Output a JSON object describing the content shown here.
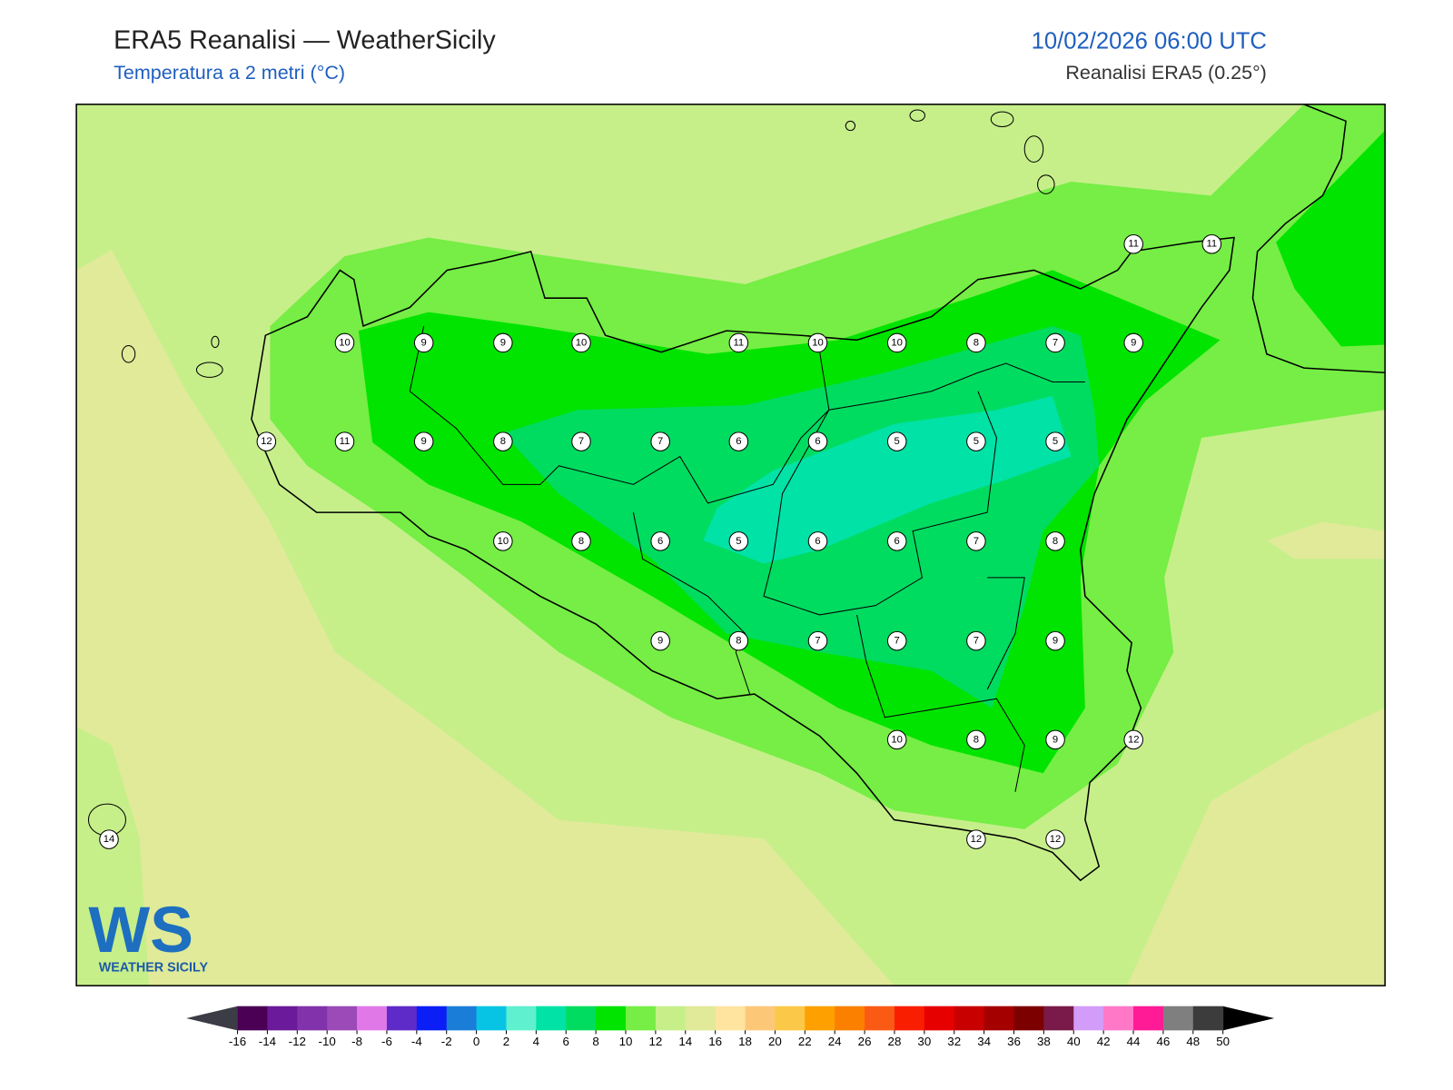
{
  "header": {
    "title": "ERA5 Reanalisi — WeatherSicily",
    "subtitle": "Temperatura a 2 metri (°C)",
    "datetime": "10/02/2026 06:00 UTC",
    "source": "Reanalisi ERA5 (0.25°)"
  },
  "stations": [
    {
      "value": 11
    },
    {
      "value": 11
    },
    {
      "value": 10
    },
    {
      "value": 9
    },
    {
      "value": 9
    },
    {
      "value": 10
    },
    {
      "value": 11
    },
    {
      "value": 10
    },
    {
      "value": 10
    },
    {
      "value": 8
    },
    {
      "value": 7
    },
    {
      "value": 9
    },
    {
      "value": 12
    },
    {
      "value": 11
    },
    {
      "value": 9
    },
    {
      "value": 8
    },
    {
      "value": 7
    },
    {
      "value": 7
    },
    {
      "value": 6
    },
    {
      "value": 6
    },
    {
      "value": 5
    },
    {
      "value": 5
    },
    {
      "value": 5
    },
    {
      "value": 10
    },
    {
      "value": 8
    },
    {
      "value": 6
    },
    {
      "value": 5
    },
    {
      "value": 6
    },
    {
      "value": 6
    },
    {
      "value": 7
    },
    {
      "value": 8
    },
    {
      "value": 9
    },
    {
      "value": 8
    },
    {
      "value": 7
    },
    {
      "value": 7
    },
    {
      "value": 7
    },
    {
      "value": 9
    },
    {
      "value": 10
    },
    {
      "value": 8
    },
    {
      "value": 9
    },
    {
      "value": 12
    },
    {
      "value": 12
    },
    {
      "value": 12
    },
    {
      "value": 14
    }
  ],
  "colorbar": {
    "ticks": [
      -16,
      -14,
      -12,
      -10,
      -8,
      -6,
      -4,
      -2,
      0,
      2,
      4,
      6,
      8,
      10,
      12,
      14,
      16,
      18,
      20,
      22,
      24,
      26,
      28,
      30,
      32,
      34,
      36,
      38,
      40,
      42,
      44,
      46,
      48,
      50
    ],
    "colors": [
      "#4b0055",
      "#6a1a9a",
      "#8232aa",
      "#9c4ab8",
      "#e078e8",
      "#5e2bc8",
      "#0a1ef5",
      "#1a7ed8",
      "#08c4e4",
      "#5ff0d0",
      "#00e2a6",
      "#00dc60",
      "#00e400",
      "#76ee45",
      "#c6ef8a",
      "#e0ea98",
      "#ffe4a0",
      "#fcc878",
      "#fcc848",
      "#fda000",
      "#fb8000",
      "#fa5a14",
      "#fa1e00",
      "#e60000",
      "#c80000",
      "#a50000",
      "#7d0000",
      "#7a1a4a",
      "#d29cf8",
      "#ff78c8",
      "#ff1a96",
      "#7f7f7f",
      "#3c3c3c"
    ],
    "under_color": "#3c3c46",
    "over_color": "#000000"
  },
  "logo": {
    "mark": "WS",
    "text": "WEATHER SICILY"
  }
}
